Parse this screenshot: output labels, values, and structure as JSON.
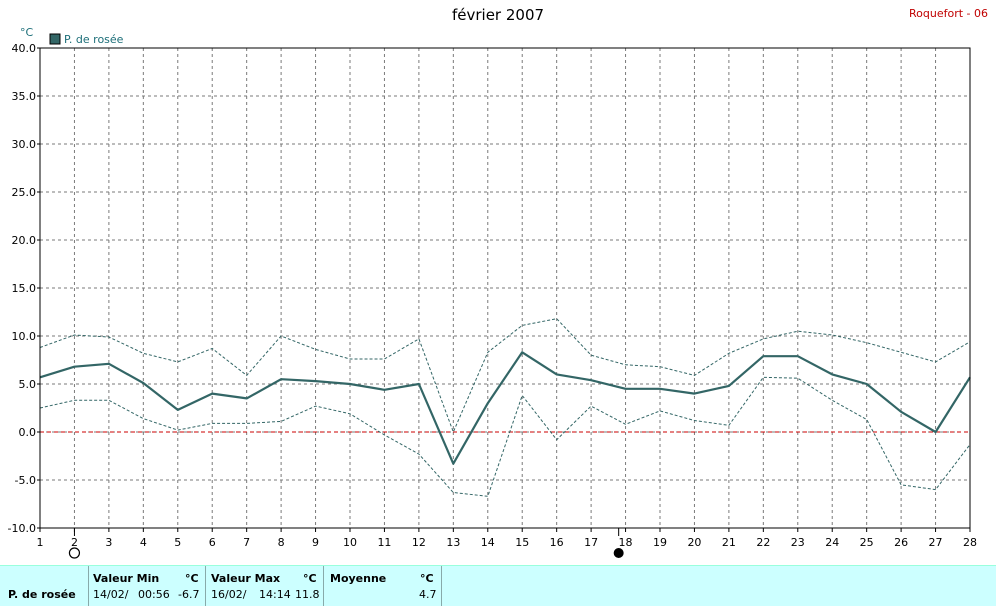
{
  "header": {
    "title": "février 2007",
    "station": "Roquefort - 06"
  },
  "chart_data": {
    "type": "line",
    "ylabel": "°C",
    "ylim": [
      -10,
      40
    ],
    "yticks": [
      "40.0",
      "35.0",
      "30.0",
      "25.0",
      "20.0",
      "15.0",
      "10.0",
      "5.0",
      "0.0",
      "-5.0",
      "-10.0"
    ],
    "x": [
      1,
      2,
      3,
      4,
      5,
      6,
      7,
      8,
      9,
      10,
      11,
      12,
      13,
      14,
      15,
      16,
      17,
      18,
      19,
      20,
      21,
      22,
      23,
      24,
      25,
      26,
      27,
      28
    ],
    "xticks": [
      "1",
      "2",
      "3",
      "4",
      "5",
      "6",
      "7",
      "8",
      "9",
      "10",
      "11",
      "12",
      "13",
      "14",
      "15",
      "16",
      "17",
      "18",
      "19",
      "20",
      "21",
      "22",
      "23",
      "24",
      "25",
      "26",
      "27",
      "28"
    ],
    "grid": true,
    "legend": "top-left",
    "colors": {
      "series": "#336666",
      "band": "#336666",
      "zero_line": "#cc0000",
      "grid": "#7a7a7a"
    },
    "series": [
      {
        "name": "P. de rosée",
        "role": "mean",
        "values": [
          5.7,
          6.8,
          7.1,
          5.1,
          2.3,
          4.0,
          3.5,
          5.5,
          5.3,
          5.0,
          4.4,
          5.0,
          -3.3,
          3.0,
          8.3,
          6.0,
          5.4,
          4.5,
          4.5,
          4.0,
          4.8,
          7.9,
          7.9,
          6.0,
          5.0,
          2.1,
          0.0,
          5.7
        ]
      },
      {
        "role": "max",
        "values": [
          8.8,
          10.1,
          9.9,
          8.2,
          7.3,
          8.7,
          5.9,
          10.0,
          8.6,
          7.6,
          7.6,
          9.7,
          0.0,
          8.3,
          11.1,
          11.8,
          8.0,
          7.0,
          6.8,
          5.9,
          8.2,
          9.7,
          10.5,
          10.1,
          9.3,
          8.3,
          7.3,
          9.4
        ]
      },
      {
        "role": "min",
        "values": [
          2.5,
          3.3,
          3.3,
          1.4,
          0.2,
          0.9,
          0.9,
          1.1,
          2.7,
          1.9,
          -0.3,
          -2.3,
          -6.3,
          -6.7,
          3.8,
          -0.8,
          2.7,
          0.8,
          2.2,
          1.2,
          0.7,
          5.7,
          5.6,
          3.3,
          1.3,
          -5.5,
          -6.0,
          -1.3
        ]
      }
    ],
    "moon_phases": [
      {
        "day": 2,
        "phase": "full-moon"
      },
      {
        "day": 17.8,
        "phase": "new-moon"
      }
    ]
  },
  "stats": {
    "row_label": "P. de rosée",
    "min": {
      "title": "Valeur Min",
      "unit": "°C",
      "date": "14/02/",
      "time": "00:56",
      "value": "-6.7"
    },
    "max": {
      "title": "Valeur Max",
      "unit": "°C",
      "date": "16/02/",
      "time": "14:14",
      "value": "11.8"
    },
    "mean": {
      "title": "Moyenne",
      "unit": "°C",
      "value": "4.7"
    }
  }
}
